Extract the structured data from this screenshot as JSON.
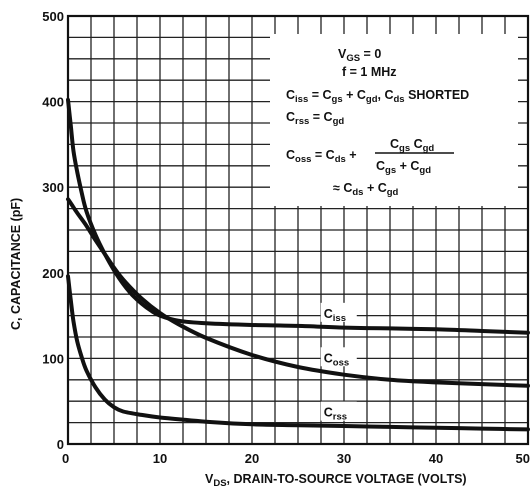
{
  "chart_data": {
    "type": "line",
    "title": "",
    "xlabel": {
      "main": "V",
      "sub": "DS",
      "rest": ", DRAIN-TO-SOURCE VOLTAGE (VOLTS)"
    },
    "ylabel": "C, CAPACITANCE (pF)",
    "xlim": [
      0,
      50
    ],
    "ylim": [
      0,
      500
    ],
    "x_ticks": [
      0,
      10,
      20,
      30,
      40,
      50
    ],
    "x_tick_labels": [
      "0",
      "10",
      "20",
      "30",
      "40",
      "50"
    ],
    "y_ticks": [
      0,
      100,
      200,
      300,
      400,
      500
    ],
    "y_tick_labels": [
      "0",
      "100",
      "200",
      "300",
      "400",
      "500"
    ],
    "grid": true,
    "grid_x_step": 2.5,
    "grid_y_step": 25,
    "legend": "labels on curves",
    "series": [
      {
        "name": "Ciss",
        "label": {
          "main": "C",
          "sub": "iss"
        },
        "x": [
          0,
          0.3,
          0.6,
          1,
          1.5,
          2,
          3,
          4,
          5,
          6,
          7,
          8,
          9,
          10,
          12,
          15,
          20,
          25,
          30,
          35,
          40,
          45,
          50
        ],
        "y": [
          402,
          372,
          342,
          318,
          293,
          272,
          244,
          222,
          203,
          187,
          174,
          164,
          156,
          150,
          144,
          141,
          139,
          138,
          136,
          135,
          134,
          132,
          130
        ]
      },
      {
        "name": "Coss",
        "label": {
          "main": "C",
          "sub": "oss"
        },
        "x": [
          0,
          0.5,
          1,
          2,
          3,
          4,
          5,
          6,
          8,
          10,
          12,
          15,
          20,
          25,
          30,
          35,
          40,
          45,
          50
        ],
        "y": [
          286,
          278,
          270,
          255,
          238,
          222,
          206,
          192,
          170,
          153,
          140,
          124,
          104,
          90,
          81,
          75,
          72,
          70,
          68
        ]
      },
      {
        "name": "Crss",
        "label": {
          "main": "C",
          "sub": "rss"
        },
        "x": [
          0,
          0.3,
          0.6,
          1,
          1.5,
          2,
          3,
          4,
          5,
          6,
          8,
          10,
          12,
          15,
          20,
          25,
          30,
          35,
          40,
          45,
          50
        ],
        "y": [
          196,
          168,
          143,
          120,
          101,
          86,
          66,
          52,
          43,
          38,
          34,
          31,
          29,
          26,
          23,
          22,
          21,
          20,
          19,
          18,
          17
        ]
      }
    ],
    "annotations": [
      {
        "id": "vgs",
        "parts": [
          {
            "t": "V"
          },
          {
            "t": "GS",
            "sub": true
          },
          {
            "t": " = 0"
          }
        ]
      },
      {
        "id": "freq",
        "parts": [
          {
            "t": "f = 1 MHz"
          }
        ]
      },
      {
        "id": "ciss_def",
        "parts": [
          {
            "t": "C"
          },
          {
            "t": "iss",
            "sub": true
          },
          {
            "t": " = C"
          },
          {
            "t": "gs",
            "sub": true
          },
          {
            "t": " + C"
          },
          {
            "t": "gd",
            "sub": true
          },
          {
            "t": ", C"
          },
          {
            "t": "ds",
            "sub": true
          },
          {
            "t": " SHORTED"
          }
        ]
      },
      {
        "id": "crss_def",
        "parts": [
          {
            "t": "C"
          },
          {
            "t": "rss",
            "sub": true
          },
          {
            "t": " = C"
          },
          {
            "t": "gd",
            "sub": true
          }
        ]
      },
      {
        "id": "coss_lhs",
        "parts": [
          {
            "t": "C"
          },
          {
            "t": "oss",
            "sub": true
          },
          {
            "t": " = C"
          },
          {
            "t": "ds",
            "sub": true
          },
          {
            "t": " +"
          }
        ]
      },
      {
        "id": "coss_num",
        "parts": [
          {
            "t": "C"
          },
          {
            "t": "gs",
            "sub": true
          },
          {
            "t": " C"
          },
          {
            "t": "gd",
            "sub": true
          }
        ]
      },
      {
        "id": "coss_den",
        "parts": [
          {
            "t": "C"
          },
          {
            "t": "gs",
            "sub": true
          },
          {
            "t": " + C"
          },
          {
            "t": "gd",
            "sub": true
          }
        ]
      },
      {
        "id": "coss_approx",
        "parts": [
          {
            "t": "≈ C"
          },
          {
            "t": "ds",
            "sub": true
          },
          {
            "t": " + C"
          },
          {
            "t": "gd",
            "sub": true
          }
        ]
      }
    ]
  }
}
